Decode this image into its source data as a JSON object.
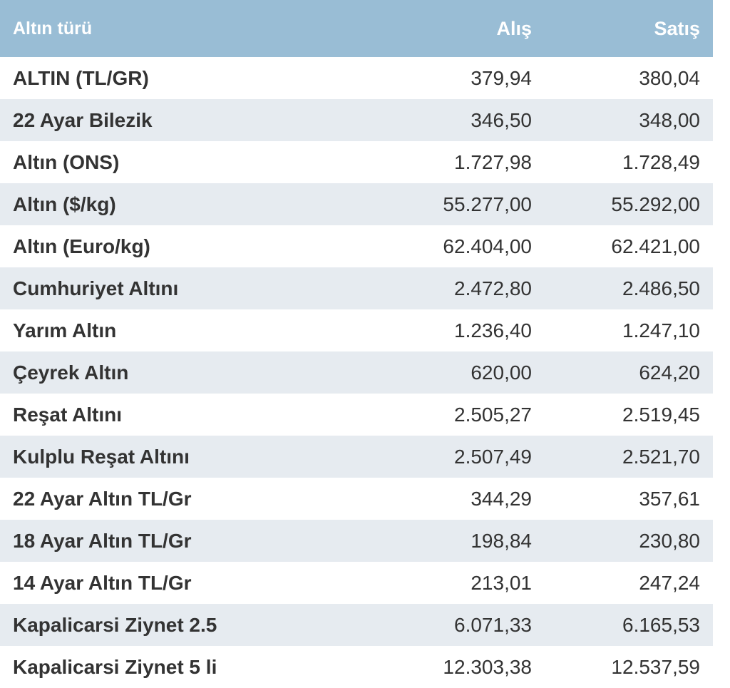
{
  "table": {
    "headers": {
      "name": "Altın türü",
      "buy": "Alış",
      "sell": "Satış"
    },
    "rows": [
      {
        "name": "ALTIN (TL/GR)",
        "buy": "379,94",
        "sell": "380,04"
      },
      {
        "name": "22 Ayar Bilezik",
        "buy": "346,50",
        "sell": "348,00"
      },
      {
        "name": "Altın (ONS)",
        "buy": "1.727,98",
        "sell": "1.728,49"
      },
      {
        "name": "Altın ($/kg)",
        "buy": "55.277,00",
        "sell": "55.292,00"
      },
      {
        "name": "Altın (Euro/kg)",
        "buy": "62.404,00",
        "sell": "62.421,00"
      },
      {
        "name": "Cumhuriyet Altını",
        "buy": "2.472,80",
        "sell": "2.486,50"
      },
      {
        "name": "Yarım Altın",
        "buy": "1.236,40",
        "sell": "1.247,10"
      },
      {
        "name": "Çeyrek Altın",
        "buy": "620,00",
        "sell": "624,20"
      },
      {
        "name": "Reşat Altını",
        "buy": "2.505,27",
        "sell": "2.519,45"
      },
      {
        "name": "Kulplu Reşat Altını",
        "buy": "2.507,49",
        "sell": "2.521,70"
      },
      {
        "name": "22 Ayar Altın TL/Gr",
        "buy": "344,29",
        "sell": "357,61"
      },
      {
        "name": "18 Ayar Altın TL/Gr",
        "buy": "198,84",
        "sell": "230,80"
      },
      {
        "name": "14 Ayar Altın TL/Gr",
        "buy": "213,01",
        "sell": "247,24"
      },
      {
        "name": "Kapalicarsi Ziynet 2.5",
        "buy": "6.071,33",
        "sell": "6.165,53"
      },
      {
        "name": "Kapalicarsi Ziynet 5 li",
        "buy": "12.303,38",
        "sell": "12.537,59"
      }
    ]
  },
  "colors": {
    "header_bg": "#99bdd5",
    "row_alt_bg": "#e6ebf0",
    "text": "#333333"
  }
}
